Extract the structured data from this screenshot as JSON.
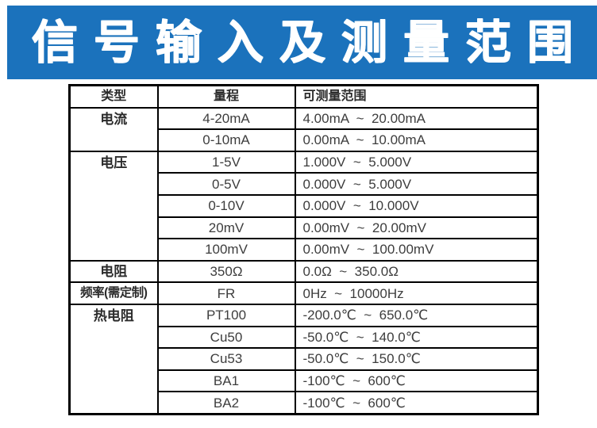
{
  "banner": {
    "title": "信号输入及测量范围",
    "bg_color": "#1b72bc",
    "text_color": "#ffffff"
  },
  "table": {
    "headers": [
      "类型",
      "量程",
      "可测量范围"
    ],
    "groups": [
      {
        "type": "电流",
        "rows": [
          {
            "range": "4-20mA",
            "measurable": "4.00mA  ~  20.00mA"
          },
          {
            "range": "0-10mA",
            "measurable": "0.00mA  ~  10.00mA"
          }
        ]
      },
      {
        "type": "电压",
        "rows": [
          {
            "range": "1-5V",
            "measurable": "1.000V  ~  5.000V"
          },
          {
            "range": "0-5V",
            "measurable": "0.000V  ~  5.000V"
          },
          {
            "range": "0-10V",
            "measurable": "0.000V  ~  10.000V"
          },
          {
            "range": "20mV",
            "measurable": "0.00mV  ~  20.00mV"
          },
          {
            "range": "100mV",
            "measurable": "0.00mV  ~  100.00mV"
          }
        ]
      },
      {
        "type": "电阻",
        "rows": [
          {
            "range": "350Ω",
            "measurable": "0.0Ω  ~  350.0Ω"
          }
        ]
      },
      {
        "type": "频率(需定制)",
        "rows": [
          {
            "range": "FR",
            "measurable": "0Hz  ~  10000Hz"
          }
        ]
      },
      {
        "type": "热电阻",
        "rows": [
          {
            "range": "PT100",
            "measurable": "-200.0℃  ~  650.0℃"
          },
          {
            "range": "Cu50",
            "measurable": "-50.0℃  ~  140.0℃"
          },
          {
            "range": "Cu53",
            "measurable": "-50.0℃  ~  150.0℃"
          },
          {
            "range": "BA1",
            "measurable": "-100℃  ~  600℃"
          },
          {
            "range": "BA2",
            "measurable": "-100℃  ~  600℃"
          }
        ]
      }
    ]
  }
}
